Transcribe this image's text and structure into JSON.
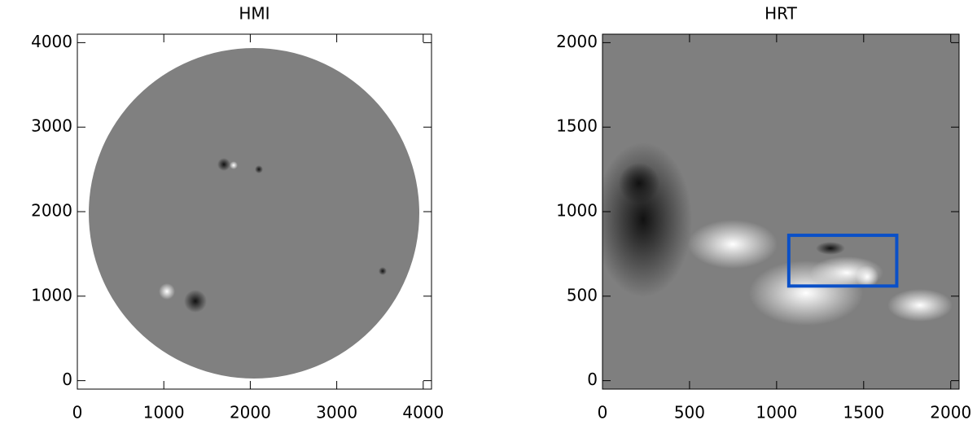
{
  "chart_data": [
    {
      "type": "image",
      "title": "HMI",
      "xlim": [
        0,
        4096
      ],
      "ylim": [
        -100,
        4100
      ],
      "xticks": [
        0,
        1000,
        2000,
        3000,
        4000
      ],
      "yticks": [
        0,
        1000,
        2000,
        3000,
        4000
      ]
    },
    {
      "type": "image",
      "title": "HRT",
      "xlim": [
        0,
        2048
      ],
      "ylim": [
        -50,
        2050
      ],
      "xticks": [
        0,
        500,
        1000,
        1500,
        2000
      ],
      "yticks": [
        0,
        500,
        1000,
        1500,
        2000
      ],
      "highlight": {
        "x": [
          1070,
          1690
        ],
        "y": [
          560,
          860
        ],
        "color": "#0a50c8"
      }
    }
  ]
}
